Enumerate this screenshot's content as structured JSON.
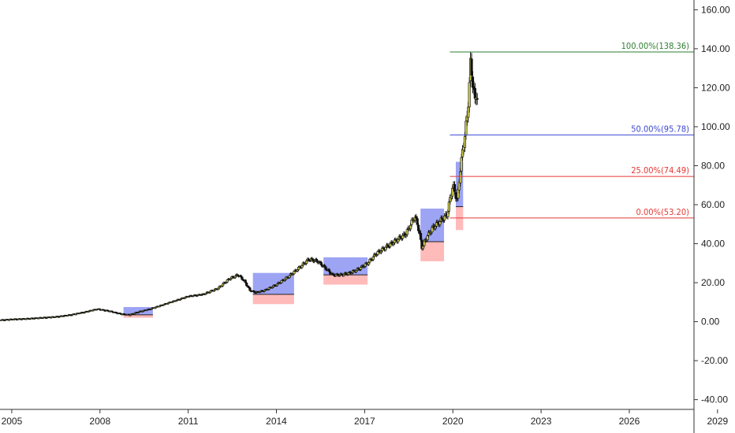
{
  "chart_data": {
    "type": "candlestick",
    "y_axis": {
      "ylim": [
        -45,
        165
      ],
      "ticks": [
        "160.00",
        "140.00",
        "120.00",
        "100.00",
        "80.00",
        "60.00",
        "40.00",
        "20.00",
        "0.00",
        "-20.00",
        "-40.00"
      ],
      "tick_values": [
        160,
        140,
        120,
        100,
        80,
        60,
        40,
        20,
        0,
        -20,
        -40
      ],
      "position": "right"
    },
    "x_axis": {
      "xlim": [
        2004.6,
        2028.2
      ],
      "ticks": [
        "2005",
        "2008",
        "2011",
        "2014",
        "2017",
        "2020",
        "2023",
        "2026",
        "2029"
      ],
      "tick_values": [
        2005,
        2008,
        2011,
        2014,
        2017,
        2020,
        2023,
        2026,
        2029
      ]
    },
    "fib_levels": [
      {
        "label": "100.00%(138.36)",
        "value": 138.36,
        "color": "#2e7d32",
        "x_start": 2019.9
      },
      {
        "label": "50.00%(95.78)",
        "value": 95.78,
        "color": "#3b47d1",
        "x_start": 2019.9
      },
      {
        "label": "25.00%(74.49)",
        "value": 74.49,
        "color": "#e53935",
        "x_start": 2019.9
      },
      {
        "label": "0.00%(53.20)",
        "value": 53.2,
        "color": "#e53935",
        "x_start": 2019.9
      }
    ],
    "zones": [
      {
        "x0": 2008.8,
        "x1": 2009.8,
        "blue": [
          3.5,
          7.5
        ],
        "red": [
          2,
          3.5
        ]
      },
      {
        "x0": 2013.2,
        "x1": 2014.6,
        "blue": [
          14,
          25
        ],
        "red": [
          9,
          14
        ]
      },
      {
        "x0": 2015.6,
        "x1": 2017.1,
        "blue": [
          24,
          33
        ],
        "red": [
          19,
          24
        ]
      },
      {
        "x0": 2018.9,
        "x1": 2019.7,
        "blue": [
          41,
          58
        ],
        "red": [
          31,
          41
        ]
      },
      {
        "x0": 2020.1,
        "x1": 2020.35,
        "blue": [
          59,
          82
        ],
        "red": [
          47,
          59
        ]
      }
    ],
    "series": [
      {
        "x": [
          2004.6,
          2005.0,
          2005.5,
          2006.0,
          2006.5,
          2007.0,
          2007.5,
          2007.9,
          2008.3,
          2008.7,
          2009.0,
          2009.3,
          2009.7,
          2010.0,
          2010.5,
          2011.0,
          2011.5,
          2012.0,
          2012.4,
          2012.7,
          2012.9,
          2013.1,
          2013.3,
          2013.6,
          2014.0,
          2014.4,
          2014.8,
          2015.1,
          2015.4,
          2015.7,
          2015.9,
          2016.2,
          2016.5,
          2016.8,
          2017.1,
          2017.4,
          2017.8,
          2018.1,
          2018.4,
          2018.7,
          2018.8,
          2018.95,
          2019.1,
          2019.3,
          2019.6,
          2019.8,
          2020.0,
          2020.15,
          2020.25,
          2020.4,
          2020.5,
          2020.6,
          2020.7,
          2020.75,
          2020.8,
          2020.85
        ],
        "close": [
          0.8,
          1.2,
          1.5,
          2.0,
          2.5,
          3.5,
          5.0,
          6.5,
          5.5,
          4.0,
          3.5,
          5.0,
          6.5,
          8.0,
          10.5,
          13.0,
          14.0,
          17.0,
          22.0,
          24.0,
          21.0,
          16.0,
          15.0,
          16.0,
          19.0,
          23.0,
          28.0,
          32.0,
          31.0,
          27.0,
          24.0,
          24.0,
          25.0,
          27.0,
          30.0,
          35.0,
          39.0,
          42.0,
          45.0,
          54.0,
          50.0,
          38.0,
          43.0,
          48.0,
          52.0,
          55.0,
          70.0,
          62.0,
          78.0,
          95.0,
          107.0,
          132.0,
          120.0,
          112.0,
          118.0,
          114.0
        ],
        "name": ""
      }
    ]
  }
}
